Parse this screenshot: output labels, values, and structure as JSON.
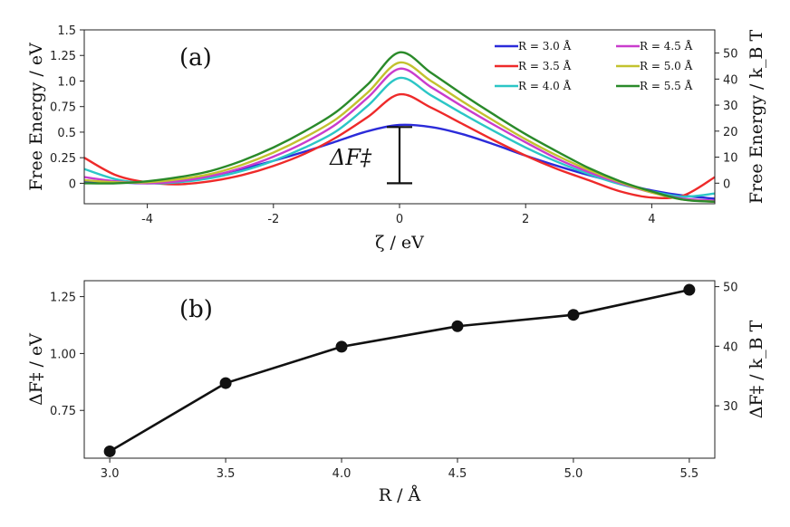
{
  "chart_data": [
    {
      "type": "line",
      "panel_label": "(a)",
      "xlabel": "ζ / eV",
      "ylabel": "Free Energy / eV",
      "ylabel_right": "Free Energy / k_B T",
      "xlim": [
        -5,
        5
      ],
      "ylim": [
        -0.2,
        1.5
      ],
      "ylim_right": [
        -7.9,
        58.9
      ],
      "xticks": [
        -4,
        -2,
        0,
        2,
        4
      ],
      "xtick_labels": [
        "-4",
        "-2",
        "0",
        "2",
        "4"
      ],
      "yticks": [
        0,
        0.25,
        0.5,
        0.75,
        1.0,
        1.25,
        1.5
      ],
      "ytick_labels": [
        "0",
        "0.25",
        "0.5",
        "0.75",
        "1.0",
        "1.25",
        "1.5"
      ],
      "yticks_right": [
        0,
        10,
        20,
        30,
        40,
        50
      ],
      "ytick_labels_right": [
        "0",
        "10",
        "20",
        "30",
        "40",
        "50"
      ],
      "annotation": {
        "text": "ΔF‡",
        "x": 0,
        "y_low": 0,
        "y_high": 0.55
      },
      "legend_position": "top-right",
      "series": [
        {
          "name": "R = 3.0 Å",
          "color": "#2b2bd9",
          "x": [
            -5,
            -4.5,
            -4,
            -3.5,
            -3,
            -2.5,
            -2,
            -1.5,
            -1,
            -0.5,
            0,
            0.5,
            1,
            1.5,
            2,
            2.5,
            3,
            3.5,
            4,
            4.5,
            5
          ],
          "y": [
            0.02,
            0.01,
            0.0,
            0.02,
            0.07,
            0.14,
            0.22,
            0.31,
            0.41,
            0.51,
            0.57,
            0.55,
            0.48,
            0.38,
            0.27,
            0.17,
            0.08,
            0.0,
            -0.07,
            -0.12,
            -0.15
          ]
        },
        {
          "name": "R = 3.5 Å",
          "color": "#ee2a2a",
          "x": [
            -5,
            -4.5,
            -4,
            -3.5,
            -3,
            -2.5,
            -2,
            -1.5,
            -1,
            -0.5,
            0,
            0.5,
            1,
            1.5,
            2,
            2.5,
            3,
            3.5,
            4,
            4.5,
            5
          ],
          "y": [
            0.25,
            0.08,
            0.01,
            -0.01,
            0.02,
            0.08,
            0.17,
            0.29,
            0.45,
            0.65,
            0.87,
            0.74,
            0.58,
            0.42,
            0.27,
            0.14,
            0.03,
            -0.08,
            -0.14,
            -0.12,
            0.06
          ]
        },
        {
          "name": "R = 4.0 Å",
          "color": "#2bc6c6",
          "x": [
            -5,
            -4.5,
            -4,
            -3.5,
            -3,
            -2.5,
            -2,
            -1.5,
            -1,
            -0.5,
            0,
            0.5,
            1,
            1.5,
            2,
            2.5,
            3,
            3.5,
            4,
            4.5,
            5
          ],
          "y": [
            0.14,
            0.04,
            0.0,
            0.01,
            0.05,
            0.12,
            0.22,
            0.35,
            0.51,
            0.76,
            1.03,
            0.86,
            0.68,
            0.51,
            0.35,
            0.21,
            0.09,
            -0.01,
            -0.08,
            -0.13,
            -0.1
          ]
        },
        {
          "name": "R = 4.5 Å",
          "color": "#c93ccd",
          "x": [
            -5,
            -4.5,
            -4,
            -3.5,
            -3,
            -2.5,
            -2,
            -1.5,
            -1,
            -0.5,
            0,
            0.5,
            1,
            1.5,
            2,
            2.5,
            3,
            3.5,
            4,
            4.5,
            5
          ],
          "y": [
            0.06,
            0.02,
            0.0,
            0.02,
            0.07,
            0.15,
            0.26,
            0.4,
            0.58,
            0.84,
            1.12,
            0.94,
            0.75,
            0.57,
            0.4,
            0.24,
            0.11,
            0.0,
            -0.09,
            -0.15,
            -0.17
          ]
        },
        {
          "name": "R = 5.0 Å",
          "color": "#c2c22e",
          "x": [
            -5,
            -4.5,
            -4,
            -3.5,
            -3,
            -2.5,
            -2,
            -1.5,
            -1,
            -0.5,
            0,
            0.5,
            1,
            1.5,
            2,
            2.5,
            3,
            3.5,
            4,
            4.5,
            5
          ],
          "y": [
            0.03,
            0.01,
            0.01,
            0.04,
            0.09,
            0.18,
            0.3,
            0.45,
            0.63,
            0.89,
            1.18,
            1.0,
            0.8,
            0.61,
            0.43,
            0.27,
            0.13,
            0.01,
            -0.09,
            -0.16,
            -0.18
          ]
        },
        {
          "name": "R = 5.5 Å",
          "color": "#2a8a2a",
          "x": [
            -5,
            -4.5,
            -4,
            -3.5,
            -3,
            -2.5,
            -2,
            -1.5,
            -1,
            -0.5,
            0,
            0.5,
            1,
            1.5,
            2,
            2.5,
            3,
            3.5,
            4,
            4.5,
            5
          ],
          "y": [
            0.0,
            0.0,
            0.02,
            0.06,
            0.12,
            0.22,
            0.35,
            0.51,
            0.7,
            0.97,
            1.28,
            1.08,
            0.87,
            0.67,
            0.48,
            0.31,
            0.15,
            0.02,
            -0.08,
            -0.16,
            -0.18
          ]
        }
      ]
    },
    {
      "type": "line",
      "panel_label": "(b)",
      "xlabel": "R / Å",
      "ylabel": "ΔF‡ / eV",
      "ylabel_right": "ΔF‡ / k_B T",
      "xlim": [
        2.89,
        5.61
      ],
      "ylim": [
        0.54,
        1.32
      ],
      "ylim_right": [
        21.2,
        51.0
      ],
      "xticks": [
        3.0,
        3.5,
        4.0,
        4.5,
        5.0,
        5.5
      ],
      "xtick_labels": [
        "3.0",
        "3.5",
        "4.0",
        "4.5",
        "5.0",
        "5.5"
      ],
      "yticks": [
        0.75,
        1.0,
        1.25
      ],
      "ytick_labels": [
        "0.75",
        "1.00",
        "1.25"
      ],
      "yticks_right": [
        30,
        40,
        50
      ],
      "ytick_labels_right": [
        "30",
        "40",
        "50"
      ],
      "series": [
        {
          "name": "ΔF‡",
          "color": "#111111",
          "x": [
            3.0,
            3.5,
            4.0,
            4.5,
            5.0,
            5.5
          ],
          "y": [
            0.57,
            0.87,
            1.03,
            1.12,
            1.17,
            1.28
          ]
        }
      ]
    }
  ]
}
